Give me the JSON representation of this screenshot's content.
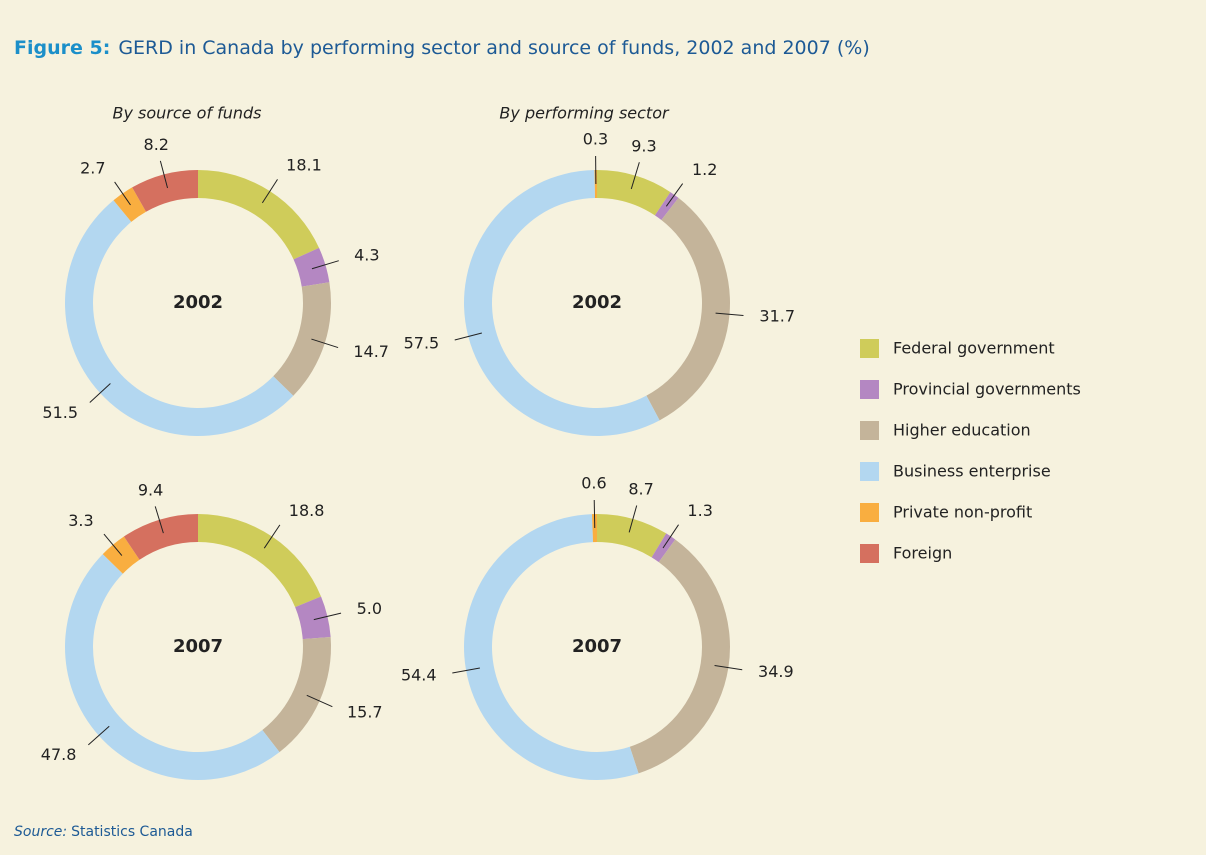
{
  "figure": {
    "label": "Figure 5:",
    "title": "GERD in Canada by performing sector and source of funds, 2002 and 2007 (%)"
  },
  "legend": {
    "labels": [
      "Federal government",
      "Provincial governments",
      "Higher education",
      "Business enterprise",
      "Private non-profit",
      "Foreign"
    ],
    "colors": [
      "#cfcc5a",
      "#b487c2",
      "#c4b49a",
      "#b3d7f0",
      "#f9ae40",
      "#d5705f"
    ]
  },
  "source": {
    "label": "Source:",
    "text": "Statistics Canada"
  },
  "chart_data": [
    {
      "type": "donut",
      "subtitle": "By source of funds",
      "center_label": "2002",
      "values": [
        18.1,
        4.3,
        14.7,
        51.5,
        2.7,
        8.2
      ]
    },
    {
      "type": "donut",
      "subtitle": "By performing sector",
      "center_label": "2002",
      "values": [
        9.3,
        1.2,
        31.7,
        57.5,
        0.3
      ]
    },
    {
      "type": "donut",
      "center_label": "2007",
      "values": [
        18.8,
        5.0,
        15.7,
        47.8,
        3.3,
        9.4
      ],
      "value_labels": [
        "18.8",
        "5.0",
        "15.7",
        "47.8",
        "3.3",
        "9.4"
      ]
    },
    {
      "type": "donut",
      "center_label": "2007",
      "values": [
        8.7,
        1.3,
        34.9,
        54.4,
        0.6
      ]
    }
  ]
}
